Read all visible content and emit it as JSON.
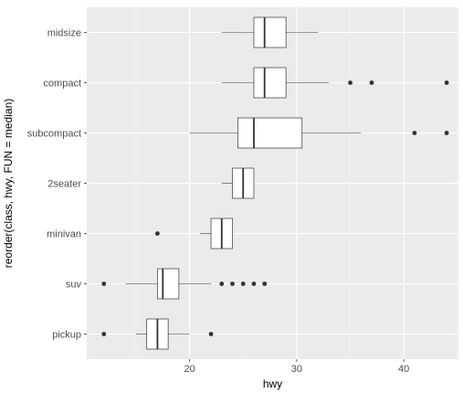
{
  "chart_data": {
    "type": "boxplot",
    "orientation": "horizontal",
    "xlabel": "hwy",
    "ylabel": "reorder(class, hwy, FUN = median)",
    "xlim": [
      10.4,
      45.1
    ],
    "x_ticks": [
      20,
      30,
      40
    ],
    "grid": true,
    "categories": [
      "pickup",
      "suv",
      "minivan",
      "2seater",
      "subcompact",
      "compact",
      "midsize"
    ],
    "boxes": [
      {
        "category": "pickup",
        "whisker_low": 15,
        "q1": 16,
        "median": 17,
        "q3": 18,
        "whisker_high": 20,
        "outliers": [
          12,
          22
        ]
      },
      {
        "category": "suv",
        "whisker_low": 14,
        "q1": 17,
        "median": 17.5,
        "q3": 19,
        "whisker_high": 22,
        "outliers": [
          12,
          23,
          24,
          25,
          26,
          27
        ]
      },
      {
        "category": "minivan",
        "whisker_low": 21,
        "q1": 22,
        "median": 23,
        "q3": 24,
        "whisker_high": 24,
        "outliers": [
          17
        ]
      },
      {
        "category": "2seater",
        "whisker_low": 23,
        "q1": 24,
        "median": 25,
        "q3": 26,
        "whisker_high": 26,
        "outliers": []
      },
      {
        "category": "subcompact",
        "whisker_low": 20,
        "q1": 24.5,
        "median": 26,
        "q3": 30.5,
        "whisker_high": 36,
        "outliers": [
          41,
          44
        ]
      },
      {
        "category": "compact",
        "whisker_low": 23,
        "q1": 26,
        "median": 27,
        "q3": 29,
        "whisker_high": 33,
        "outliers": [
          35,
          37,
          44
        ]
      },
      {
        "category": "midsize",
        "whisker_low": 23,
        "q1": 26,
        "median": 27,
        "q3": 29,
        "whisker_high": 32,
        "outliers": []
      }
    ],
    "colors": {
      "panel_background": "#ebebeb",
      "grid_major": "#ffffff",
      "box_fill": "#ffffff",
      "box_stroke": "#333333",
      "outlier": "#333333"
    }
  }
}
